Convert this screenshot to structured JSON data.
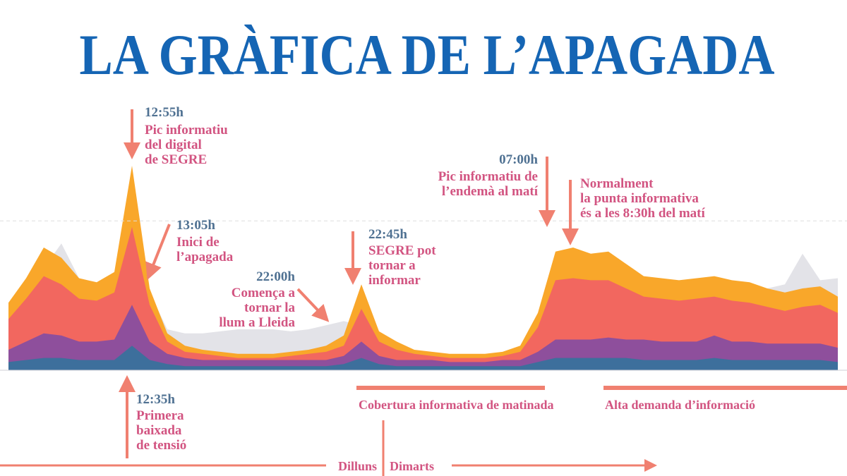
{
  "chart_data": {
    "type": "stacked_area",
    "title": "LA GRÀFICA DE L’APAGADA",
    "ylim": [
      0,
      100
    ],
    "reference_line": 73,
    "background_series": {
      "color": "#e3e3e8",
      "values": [
        30,
        40,
        50,
        62,
        45,
        42,
        45,
        40,
        38,
        20,
        18,
        18,
        19,
        20,
        20,
        20,
        19,
        20,
        22,
        24,
        22,
        18,
        12,
        8,
        6,
        6,
        6,
        6,
        6,
        8,
        20,
        50,
        55,
        52,
        50,
        48,
        44,
        42,
        42,
        44,
        44,
        43,
        42,
        40,
        42,
        57,
        44,
        45
      ]
    },
    "series": [
      {
        "color": "#3d6f9c",
        "values": [
          4,
          5,
          6,
          6,
          5,
          5,
          5,
          12,
          5,
          3,
          2,
          2,
          2,
          2,
          2,
          2,
          2,
          2,
          2,
          3,
          6,
          3,
          2,
          2,
          2,
          2,
          2,
          2,
          2,
          2,
          4,
          6,
          6,
          6,
          6,
          6,
          5,
          5,
          5,
          5,
          6,
          5,
          5,
          5,
          5,
          5,
          5,
          4
        ]
      },
      {
        "color": "#8e4f9c",
        "values": [
          6,
          9,
          12,
          11,
          9,
          9,
          10,
          20,
          9,
          5,
          4,
          3,
          3,
          3,
          3,
          3,
          3,
          3,
          3,
          4,
          8,
          4,
          3,
          3,
          3,
          2,
          2,
          2,
          3,
          3,
          5,
          9,
          9,
          9,
          10,
          9,
          10,
          9,
          9,
          9,
          11,
          9,
          9,
          8,
          8,
          8,
          8,
          7
        ]
      },
      {
        "color": "#f2675f",
        "values": [
          15,
          21,
          28,
          25,
          21,
          20,
          23,
          38,
          18,
          6,
          3,
          3,
          2,
          1,
          1,
          1,
          2,
          3,
          4,
          5,
          16,
          7,
          5,
          3,
          2,
          2,
          2,
          2,
          2,
          4,
          12,
          29,
          30,
          29,
          28,
          25,
          21,
          21,
          20,
          21,
          19,
          20,
          19,
          18,
          16,
          18,
          19,
          17
        ]
      },
      {
        "color": "#f9a72a",
        "values": [
          8,
          10,
          14,
          13,
          10,
          9,
          10,
          30,
          8,
          4,
          3,
          2,
          2,
          2,
          2,
          2,
          2,
          2,
          3,
          5,
          12,
          5,
          4,
          2,
          2,
          2,
          2,
          2,
          2,
          3,
          7,
          14,
          15,
          13,
          14,
          12,
          10,
          10,
          10,
          10,
          10,
          10,
          10,
          9,
          9,
          9,
          9,
          8
        ]
      }
    ],
    "annotations": [
      {
        "time": "12:55h",
        "lines": [
          "Pic informatiu",
          "del digital",
          "de SEGRE"
        ]
      },
      {
        "time": "13:05h",
        "lines": [
          "Inici de",
          "l’apagada"
        ]
      },
      {
        "time": "22:00h",
        "lines": [
          "Comença a",
          "tornar la",
          "llum a Lleida"
        ]
      },
      {
        "time": "22:45h",
        "lines": [
          "SEGRE pot",
          "tornar a",
          "informar"
        ]
      },
      {
        "time": "07:00h",
        "lines": [
          "Pic informatiu de",
          "l’endemà al matí"
        ]
      },
      {
        "lines": [
          "Normalment",
          "la punta informativa",
          "és a les 8:30h del matí"
        ]
      },
      {
        "time": "12:35h",
        "lines": [
          "Primera",
          "baixada",
          "de tensió"
        ]
      }
    ],
    "periods": [
      "Cobertura informativa de matinada",
      "Alta demanda d’informació"
    ],
    "days": [
      "Dilluns",
      "Dimarts"
    ]
  }
}
